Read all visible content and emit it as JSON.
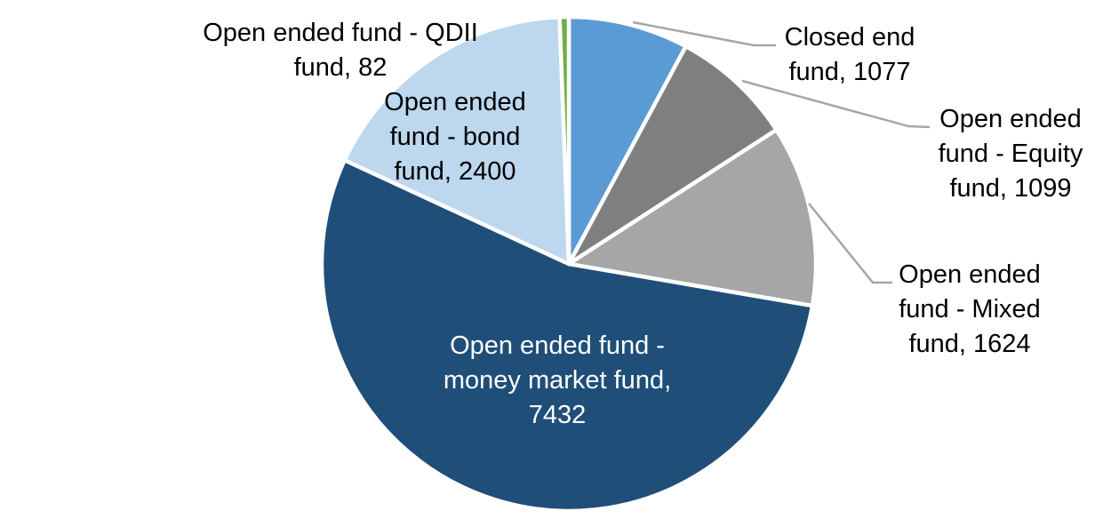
{
  "chart_data": {
    "type": "pie",
    "title": "",
    "total": 13714,
    "direction": "clockwise",
    "start_angle_deg": 0,
    "legend": "none",
    "leader_line_color": "#A6A6A6",
    "inside_label_color": "#FFFFFF",
    "outside_label_color": "#000000",
    "series": [
      {
        "label": "Closed end fund",
        "value": 1077,
        "color": "#5B9BD5",
        "label_placement": "outside"
      },
      {
        "label": "Open ended fund - Equity fund",
        "value": 1099,
        "color": "#7F7F7F",
        "label_placement": "outside"
      },
      {
        "label": "Open ended fund - Mixed fund",
        "value": 1624,
        "color": "#A6A6A6",
        "label_placement": "outside"
      },
      {
        "label": "Open ended fund - money market fund",
        "value": 7432,
        "color": "#1F4E79",
        "label_placement": "inside"
      },
      {
        "label": "Open ended fund - bond fund",
        "value": 2400,
        "color": "#BDD7EE",
        "label_placement": "inside"
      },
      {
        "label": "Open ended fund - QDII fund",
        "value": 82,
        "color": "#70AD47",
        "label_placement": "outside"
      }
    ]
  },
  "callouts": {
    "qdii": {
      "lines": [
        "Open ended fund - QDII",
        "fund, 82"
      ]
    },
    "bond": {
      "lines": [
        "Open ended",
        "fund - bond",
        "fund, 2400"
      ]
    },
    "closed_end": {
      "lines": [
        "Closed end",
        "fund, 1077"
      ]
    },
    "equity": {
      "lines": [
        "Open ended",
        "fund - Equity",
        "fund, 1099"
      ]
    },
    "mixed": {
      "lines": [
        "Open ended",
        "fund - Mixed",
        "fund, 1624"
      ]
    },
    "money_market": {
      "lines": [
        "Open ended fund -",
        "money market fund,",
        "7432"
      ]
    }
  }
}
